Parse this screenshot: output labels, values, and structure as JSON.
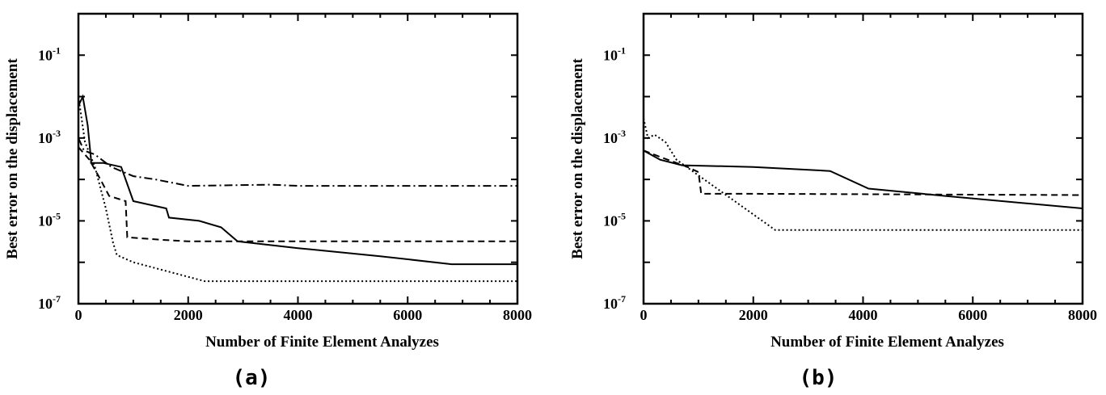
{
  "chart_data": [
    {
      "type": "line",
      "panel": "(a)",
      "xlabel": "Number of Finite Element Analyzes",
      "ylabel": "Best error on the displacement",
      "xlim": [
        0,
        8000
      ],
      "ylim": [
        1e-07,
        1
      ],
      "yscale": "log",
      "x_ticks": [
        "0",
        "2000",
        "4000",
        "6000",
        "8000"
      ],
      "y_ticks": [
        {
          "base": "10",
          "exp": "-7"
        },
        {
          "base": "10",
          "exp": "-5"
        },
        {
          "base": "10",
          "exp": "-3"
        },
        {
          "base": "10",
          "exp": "-1"
        }
      ],
      "series": [
        {
          "style": "solid",
          "points": [
            [
              0,
              0.006
            ],
            [
              80,
              0.01
            ],
            [
              170,
              0.002
            ],
            [
              230,
              0.0003
            ],
            [
              230,
              0.00025
            ],
            [
              450,
              0.00025
            ],
            [
              780,
              0.0002
            ],
            [
              920,
              6e-05
            ],
            [
              1000,
              3e-05
            ],
            [
              1600,
              2e-05
            ],
            [
              1650,
              1.2e-05
            ],
            [
              2200,
              1e-05
            ],
            [
              2600,
              7e-06
            ],
            [
              2900,
              3.2e-06
            ],
            [
              4000,
              2.2e-06
            ],
            [
              5500,
              1.4e-06
            ],
            [
              6800,
              9e-07
            ],
            [
              8000,
              9e-07
            ]
          ]
        },
        {
          "style": "dashed",
          "points": [
            [
              0,
              0.0006
            ],
            [
              200,
              0.0003
            ],
            [
              400,
              0.0001
            ],
            [
              560,
              4e-05
            ],
            [
              860,
              3e-05
            ],
            [
              890,
              4e-06
            ],
            [
              1500,
              3.5e-06
            ],
            [
              2000,
              3.2e-06
            ],
            [
              8000,
              3.2e-06
            ]
          ]
        },
        {
          "style": "dotted",
          "points": [
            [
              0,
              0.01
            ],
            [
              120,
              0.0008
            ],
            [
              300,
              0.0002
            ],
            [
              500,
              2e-05
            ],
            [
              630,
              3e-06
            ],
            [
              700,
              1.5e-06
            ],
            [
              1000,
              1e-06
            ],
            [
              2300,
              3.5e-07
            ],
            [
              8000,
              3.5e-07
            ]
          ]
        },
        {
          "style": "dash-dot",
          "points": [
            [
              0,
              0.001
            ],
            [
              100,
              0.0005
            ],
            [
              300,
              0.0004
            ],
            [
              600,
              0.0002
            ],
            [
              1000,
              0.00012
            ],
            [
              1400,
              0.0001
            ],
            [
              2000,
              7e-05
            ],
            [
              3500,
              7.5e-05
            ],
            [
              4000,
              7e-05
            ],
            [
              8000,
              7e-05
            ]
          ]
        }
      ]
    },
    {
      "type": "line",
      "panel": "(b)",
      "xlabel": "Number of Finite Element Analyzes",
      "ylabel": "Best error on the displacement",
      "xlim": [
        0,
        8000
      ],
      "ylim": [
        1e-07,
        1
      ],
      "yscale": "log",
      "x_ticks": [
        "0",
        "2000",
        "4000",
        "6000",
        "8000"
      ],
      "y_ticks": [
        {
          "base": "10",
          "exp": "-7"
        },
        {
          "base": "10",
          "exp": "-5"
        },
        {
          "base": "10",
          "exp": "-3"
        },
        {
          "base": "10",
          "exp": "-1"
        }
      ],
      "series": [
        {
          "style": "solid",
          "points": [
            [
              0,
              0.0005
            ],
            [
              300,
              0.0003
            ],
            [
              700,
              0.00022
            ],
            [
              2000,
              0.0002
            ],
            [
              3400,
              0.00016
            ],
            [
              4100,
              6e-05
            ],
            [
              5500,
              4e-05
            ],
            [
              8000,
              2e-05
            ]
          ]
        },
        {
          "style": "dashed",
          "points": [
            [
              0,
              0.0005
            ],
            [
              300,
              0.00035
            ],
            [
              800,
              0.0002
            ],
            [
              1000,
              0.00015
            ],
            [
              1050,
              4.5e-05
            ],
            [
              2000,
              4.5e-05
            ],
            [
              8000,
              4.2e-05
            ]
          ]
        },
        {
          "style": "dotted",
          "points": [
            [
              0,
              0.003
            ],
            [
              80,
              0.001
            ],
            [
              200,
              0.0012
            ],
            [
              400,
              0.0008
            ],
            [
              600,
              0.0003
            ],
            [
              2400,
              6e-06
            ],
            [
              8000,
              6e-06
            ]
          ]
        }
      ]
    }
  ]
}
